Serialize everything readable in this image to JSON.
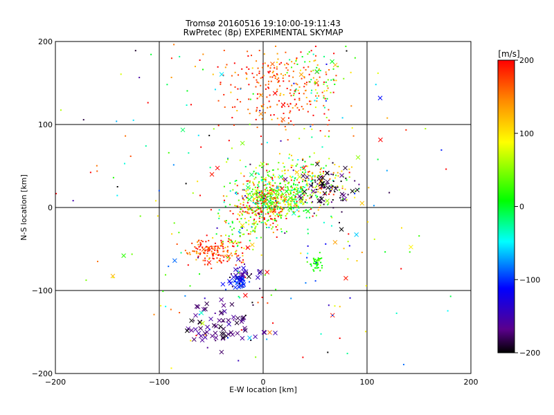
{
  "chart_data": {
    "type": "scatter",
    "title": "Tromsø 20160516 19:10:00-19:11:43",
    "subtitle": "RwPretec (8p) EXPERIMENTAL SKYMAP",
    "xlabel": "E-W location [km]",
    "ylabel": "N-S location [km]",
    "xlim": [
      -200,
      200
    ],
    "ylim": [
      -200,
      200
    ],
    "x_ticks": [
      -200,
      -100,
      0,
      100,
      200
    ],
    "y_ticks": [
      -200,
      -100,
      0,
      100,
      200
    ],
    "x_tick_labels": [
      "−200",
      "−100",
      "0",
      "100",
      "200"
    ],
    "y_tick_labels": [
      "−200",
      "−100",
      "0",
      "100",
      "200"
    ],
    "grid": true,
    "colorbar": {
      "label": "[m/s]",
      "range": [
        -200,
        200
      ],
      "ticks": [
        200,
        100,
        0,
        -100,
        -200
      ],
      "tick_labels": [
        "200",
        "100",
        "0",
        "−100",
        "−200"
      ],
      "colormap": "black-purple-blue-cyan-green-yellow-orange-red"
    },
    "markers": {
      "dot": "meteor echo (dot)",
      "cross": "meteor echo (cross)"
    },
    "clusters": [
      {
        "cx": 15,
        "cy": 145,
        "sx": 30,
        "sy": 25,
        "n": 260,
        "v": 170,
        "vs": 30,
        "cross": 0.04
      },
      {
        "cx": 55,
        "cy": 160,
        "sx": 20,
        "sy": 18,
        "n": 60,
        "v": 30,
        "vs": 50,
        "cross": 0.05
      },
      {
        "cx": 0,
        "cy": 5,
        "sx": 14,
        "sy": 14,
        "n": 260,
        "v": 160,
        "vs": 60,
        "cross": 0.05
      },
      {
        "cx": 15,
        "cy": 15,
        "sx": 22,
        "sy": 18,
        "n": 360,
        "v": 20,
        "vs": 40,
        "cross": 0.06
      },
      {
        "cx": 45,
        "cy": 30,
        "sx": 18,
        "sy": 14,
        "n": 150,
        "v": 90,
        "vs": 70,
        "cross": 0.08
      },
      {
        "cx": 62,
        "cy": 20,
        "sx": 12,
        "sy": 12,
        "n": 80,
        "v": -190,
        "vs": 15,
        "cross": 0.35
      },
      {
        "cx": -45,
        "cy": -52,
        "sx": 14,
        "sy": 8,
        "n": 160,
        "v": 175,
        "vs": 30,
        "cross": 0.05
      },
      {
        "cx": -20,
        "cy": -30,
        "sx": 12,
        "sy": 12,
        "n": 60,
        "v": 40,
        "vs": 50,
        "cross": 0.05
      },
      {
        "cx": -18,
        "cy": -80,
        "sx": 6,
        "sy": 8,
        "n": 35,
        "v": -160,
        "vs": 20,
        "cross": 0.5
      },
      {
        "cx": -25,
        "cy": -90,
        "sx": 6,
        "sy": 4,
        "n": 25,
        "v": -100,
        "vs": 10,
        "cross": 0.6
      },
      {
        "cx": -40,
        "cy": -140,
        "sx": 18,
        "sy": 14,
        "n": 75,
        "v": -175,
        "vs": 15,
        "cross": 0.85
      },
      {
        "cx": 52,
        "cy": -67,
        "sx": 4,
        "sy": 4,
        "n": 40,
        "v": 15,
        "vs": 10,
        "cross": 0.0
      },
      {
        "cx": 0,
        "cy": 0,
        "sx": 90,
        "sy": 110,
        "n": 300,
        "v": 40,
        "vs": 130,
        "cross": 0.12
      }
    ]
  }
}
